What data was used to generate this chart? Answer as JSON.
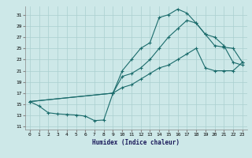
{
  "xlabel": "Humidex (Indice chaleur)",
  "background_color": "#cde8e8",
  "grid_color": "#aacfcf",
  "line_color": "#1a6b6b",
  "xlim": [
    -0.5,
    23.5
  ],
  "ylim": [
    10.5,
    32.5
  ],
  "xticks": [
    0,
    1,
    2,
    3,
    4,
    5,
    6,
    7,
    8,
    9,
    10,
    11,
    12,
    13,
    14,
    15,
    16,
    17,
    18,
    19,
    20,
    21,
    22,
    23
  ],
  "yticks": [
    11,
    13,
    15,
    17,
    19,
    21,
    23,
    25,
    27,
    29,
    31
  ],
  "curve1_x": [
    0,
    1,
    2,
    3,
    4,
    5,
    6,
    7,
    8,
    9,
    10,
    11,
    12,
    13,
    14,
    15,
    16,
    17,
    18,
    19,
    20,
    21,
    22,
    23
  ],
  "curve1_y": [
    15.5,
    14.7,
    13.5,
    13.3,
    13.2,
    13.1,
    12.9,
    12.1,
    12.2,
    17.0,
    21.0,
    23.0,
    25.0,
    26.0,
    30.5,
    31.0,
    32.0,
    31.3,
    29.5,
    27.5,
    25.5,
    25.2,
    25.0,
    22.5
  ],
  "curve2_x": [
    0,
    9,
    10,
    11,
    12,
    13,
    14,
    15,
    16,
    17,
    18,
    19,
    20,
    21,
    22,
    23
  ],
  "curve2_y": [
    15.5,
    17.0,
    20.0,
    20.5,
    21.5,
    23.0,
    25.0,
    27.0,
    28.5,
    30.0,
    29.5,
    27.5,
    27.0,
    25.5,
    22.5,
    22.0
  ],
  "curve3_x": [
    0,
    9,
    10,
    11,
    12,
    13,
    14,
    15,
    16,
    17,
    18,
    19,
    20,
    21,
    22,
    23
  ],
  "curve3_y": [
    15.5,
    17.0,
    18.0,
    18.5,
    19.5,
    20.5,
    21.5,
    22.0,
    23.0,
    24.0,
    25.0,
    21.5,
    21.0,
    21.0,
    21.0,
    22.5
  ]
}
